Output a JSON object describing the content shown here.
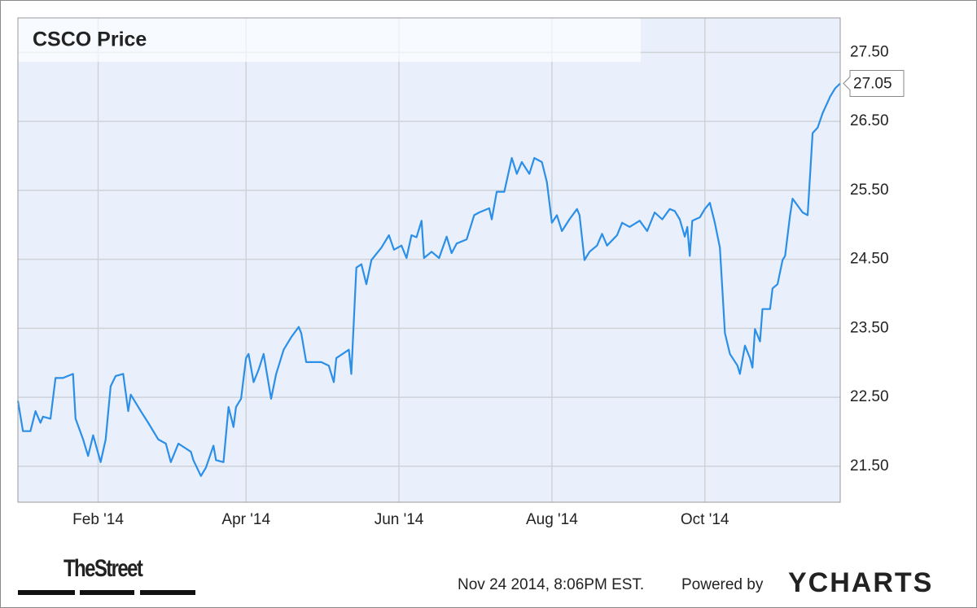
{
  "chart_data": {
    "type": "line",
    "title": "CSCO Price",
    "x": [
      0,
      2,
      5,
      7,
      9,
      10,
      13,
      15,
      18,
      22,
      23,
      26,
      28,
      30,
      33,
      35,
      37,
      39,
      42,
      44,
      45,
      49,
      52,
      56,
      59,
      61,
      64,
      69,
      70,
      73,
      75,
      78,
      79,
      82,
      84,
      86,
      87,
      89,
      91,
      92,
      94,
      96,
      98,
      101,
      103,
      106,
      109,
      112,
      113,
      115,
      118,
      121,
      124,
      126,
      127,
      132,
      133,
      135,
      137,
      139,
      141,
      145,
      148,
      150,
      153,
      155,
      157,
      159,
      161,
      162,
      165,
      168,
      171,
      173,
      175,
      179,
      182,
      184,
      188,
      189,
      191,
      194,
      197,
      199,
      201,
      204,
      206,
      209,
      211,
      213,
      215,
      217,
      220,
      223,
      224,
      226,
      228,
      231,
      233,
      235,
      239,
      241,
      244,
      248,
      251,
      254,
      257,
      260,
      262,
      264,
      266,
      267,
      268,
      269,
      272,
      274,
      276,
      278,
      280,
      282,
      284,
      287,
      288,
      290,
      292,
      293,
      294,
      296,
      297,
      300,
      301,
      303,
      305,
      306,
      308,
      309,
      313,
      315,
      317,
      319,
      321,
      324,
      326,
      328
    ],
    "series": [
      {
        "color": "#2b8fe8",
        "values": [
          22.45,
          22.01,
          22.01,
          22.3,
          22.13,
          22.22,
          22.19,
          22.78,
          22.78,
          22.84,
          22.19,
          21.89,
          21.65,
          21.95,
          21.56,
          21.89,
          22.66,
          22.81,
          22.84,
          22.3,
          22.54,
          22.3,
          22.13,
          21.89,
          21.83,
          21.56,
          21.83,
          21.71,
          21.59,
          21.36,
          21.48,
          21.8,
          21.59,
          21.56,
          22.36,
          22.07,
          22.36,
          22.48,
          23.07,
          23.13,
          22.72,
          22.9,
          23.13,
          22.48,
          22.84,
          23.19,
          23.37,
          23.52,
          23.43,
          23.01,
          23.01,
          23.01,
          22.96,
          22.72,
          23.07,
          23.19,
          22.84,
          24.38,
          24.43,
          24.14,
          24.49,
          24.67,
          24.85,
          24.64,
          24.7,
          24.52,
          24.85,
          24.82,
          25.06,
          24.52,
          24.61,
          24.52,
          24.83,
          24.59,
          24.73,
          24.79,
          25.14,
          25.18,
          25.24,
          25.08,
          25.48,
          25.48,
          25.97,
          25.74,
          25.91,
          25.74,
          25.97,
          25.91,
          25.62,
          25.03,
          25.14,
          24.91,
          25.08,
          25.23,
          25.14,
          24.49,
          24.61,
          24.7,
          24.87,
          24.7,
          24.85,
          25.03,
          24.97,
          25.06,
          24.91,
          25.18,
          25.08,
          25.23,
          25.2,
          25.08,
          24.83,
          24.97,
          24.55,
          25.06,
          25.11,
          25.23,
          25.32,
          25.03,
          24.67,
          23.43,
          23.13,
          22.96,
          22.84,
          23.25,
          23.07,
          22.93,
          23.49,
          23.31,
          23.78,
          23.78,
          24.08,
          24.14,
          24.49,
          24.55,
          25.14,
          25.38,
          25.18,
          25.14,
          26.33,
          26.41,
          26.62,
          26.86,
          26.98,
          27.05
        ]
      }
    ],
    "last_value": 27.05,
    "xlim": [
      0,
      328
    ],
    "xticks": [
      {
        "value": 32,
        "label": "Feb '14"
      },
      {
        "value": 91,
        "label": "Apr '14"
      },
      {
        "value": 152,
        "label": "Jun '14"
      },
      {
        "value": 213,
        "label": "Aug '14"
      },
      {
        "value": 274,
        "label": "Oct '14"
      }
    ],
    "ylim": [
      20.98,
      28.0
    ],
    "yticks": [
      {
        "value": 21.5,
        "label": "21.50"
      },
      {
        "value": 22.5,
        "label": "22.50"
      },
      {
        "value": 23.5,
        "label": "23.50"
      },
      {
        "value": 24.5,
        "label": "24.50"
      },
      {
        "value": 25.5,
        "label": "25.50"
      },
      {
        "value": 26.5,
        "label": "26.50"
      },
      {
        "value": 27.5,
        "label": "27.50"
      }
    ],
    "grid": true,
    "source_logo": "TheStreet",
    "timestamp": "Nov 24 2014, 8:06PM EST.",
    "powered_by": "Powered by",
    "brand": "YCHARTS"
  }
}
